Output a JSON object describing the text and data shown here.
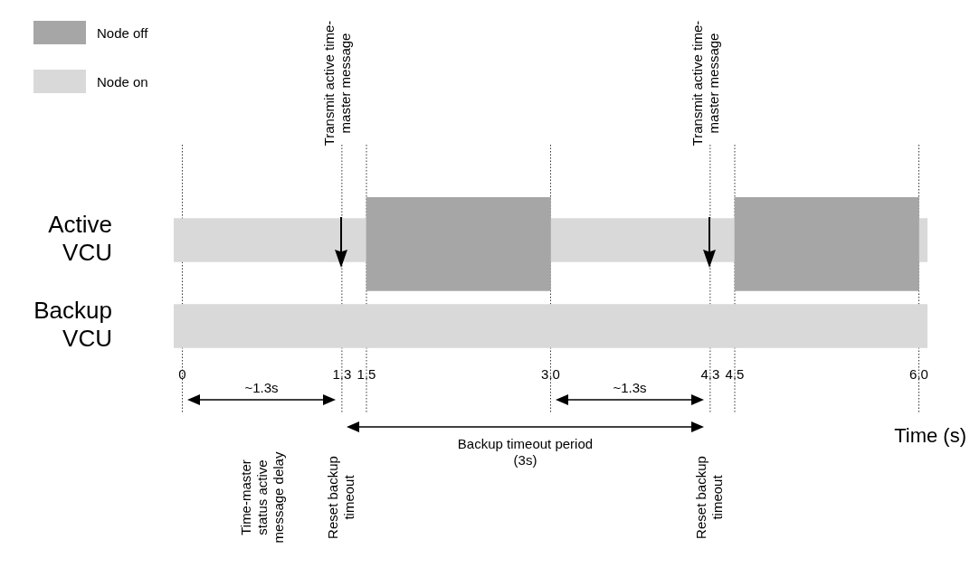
{
  "chart_data": {
    "type": "bar",
    "orientation": "horizontal",
    "categories": [
      "Active VCU",
      "Backup VCU"
    ],
    "series": [
      {
        "name": "Node off",
        "color": "#a6a6a6",
        "base": [
          1.5,
          null
        ],
        "values": [
          1.5,
          null
        ]
      },
      {
        "color": "#a6a6a6",
        "base": [
          4.5,
          null
        ],
        "values": [
          1.5,
          null
        ]
      },
      {
        "name": "Node on",
        "color": "#d9d9d9",
        "base": [
          -0.07,
          -0.07
        ],
        "values": [
          6.14,
          6.14
        ]
      }
    ],
    "xlim": [
      -0.07,
      6.07
    ],
    "xticks": [
      0,
      1.3,
      1.5,
      {
        "value": 3,
        "label": "3.0"
      },
      4.3,
      4.5,
      {
        "value": 6,
        "label": "6.0"
      }
    ],
    "xlabel": "Time (s)",
    "grid": "x",
    "legend": "top left",
    "annotations": [
      "Transmit active time-master message",
      "Transmit active time-master message",
      "Time-master status active message delay",
      "Reset backup timeout",
      "Reset backup timeout",
      "~1.3s",
      "~1.3s",
      "Backup timeout period (3s)"
    ]
  }
}
